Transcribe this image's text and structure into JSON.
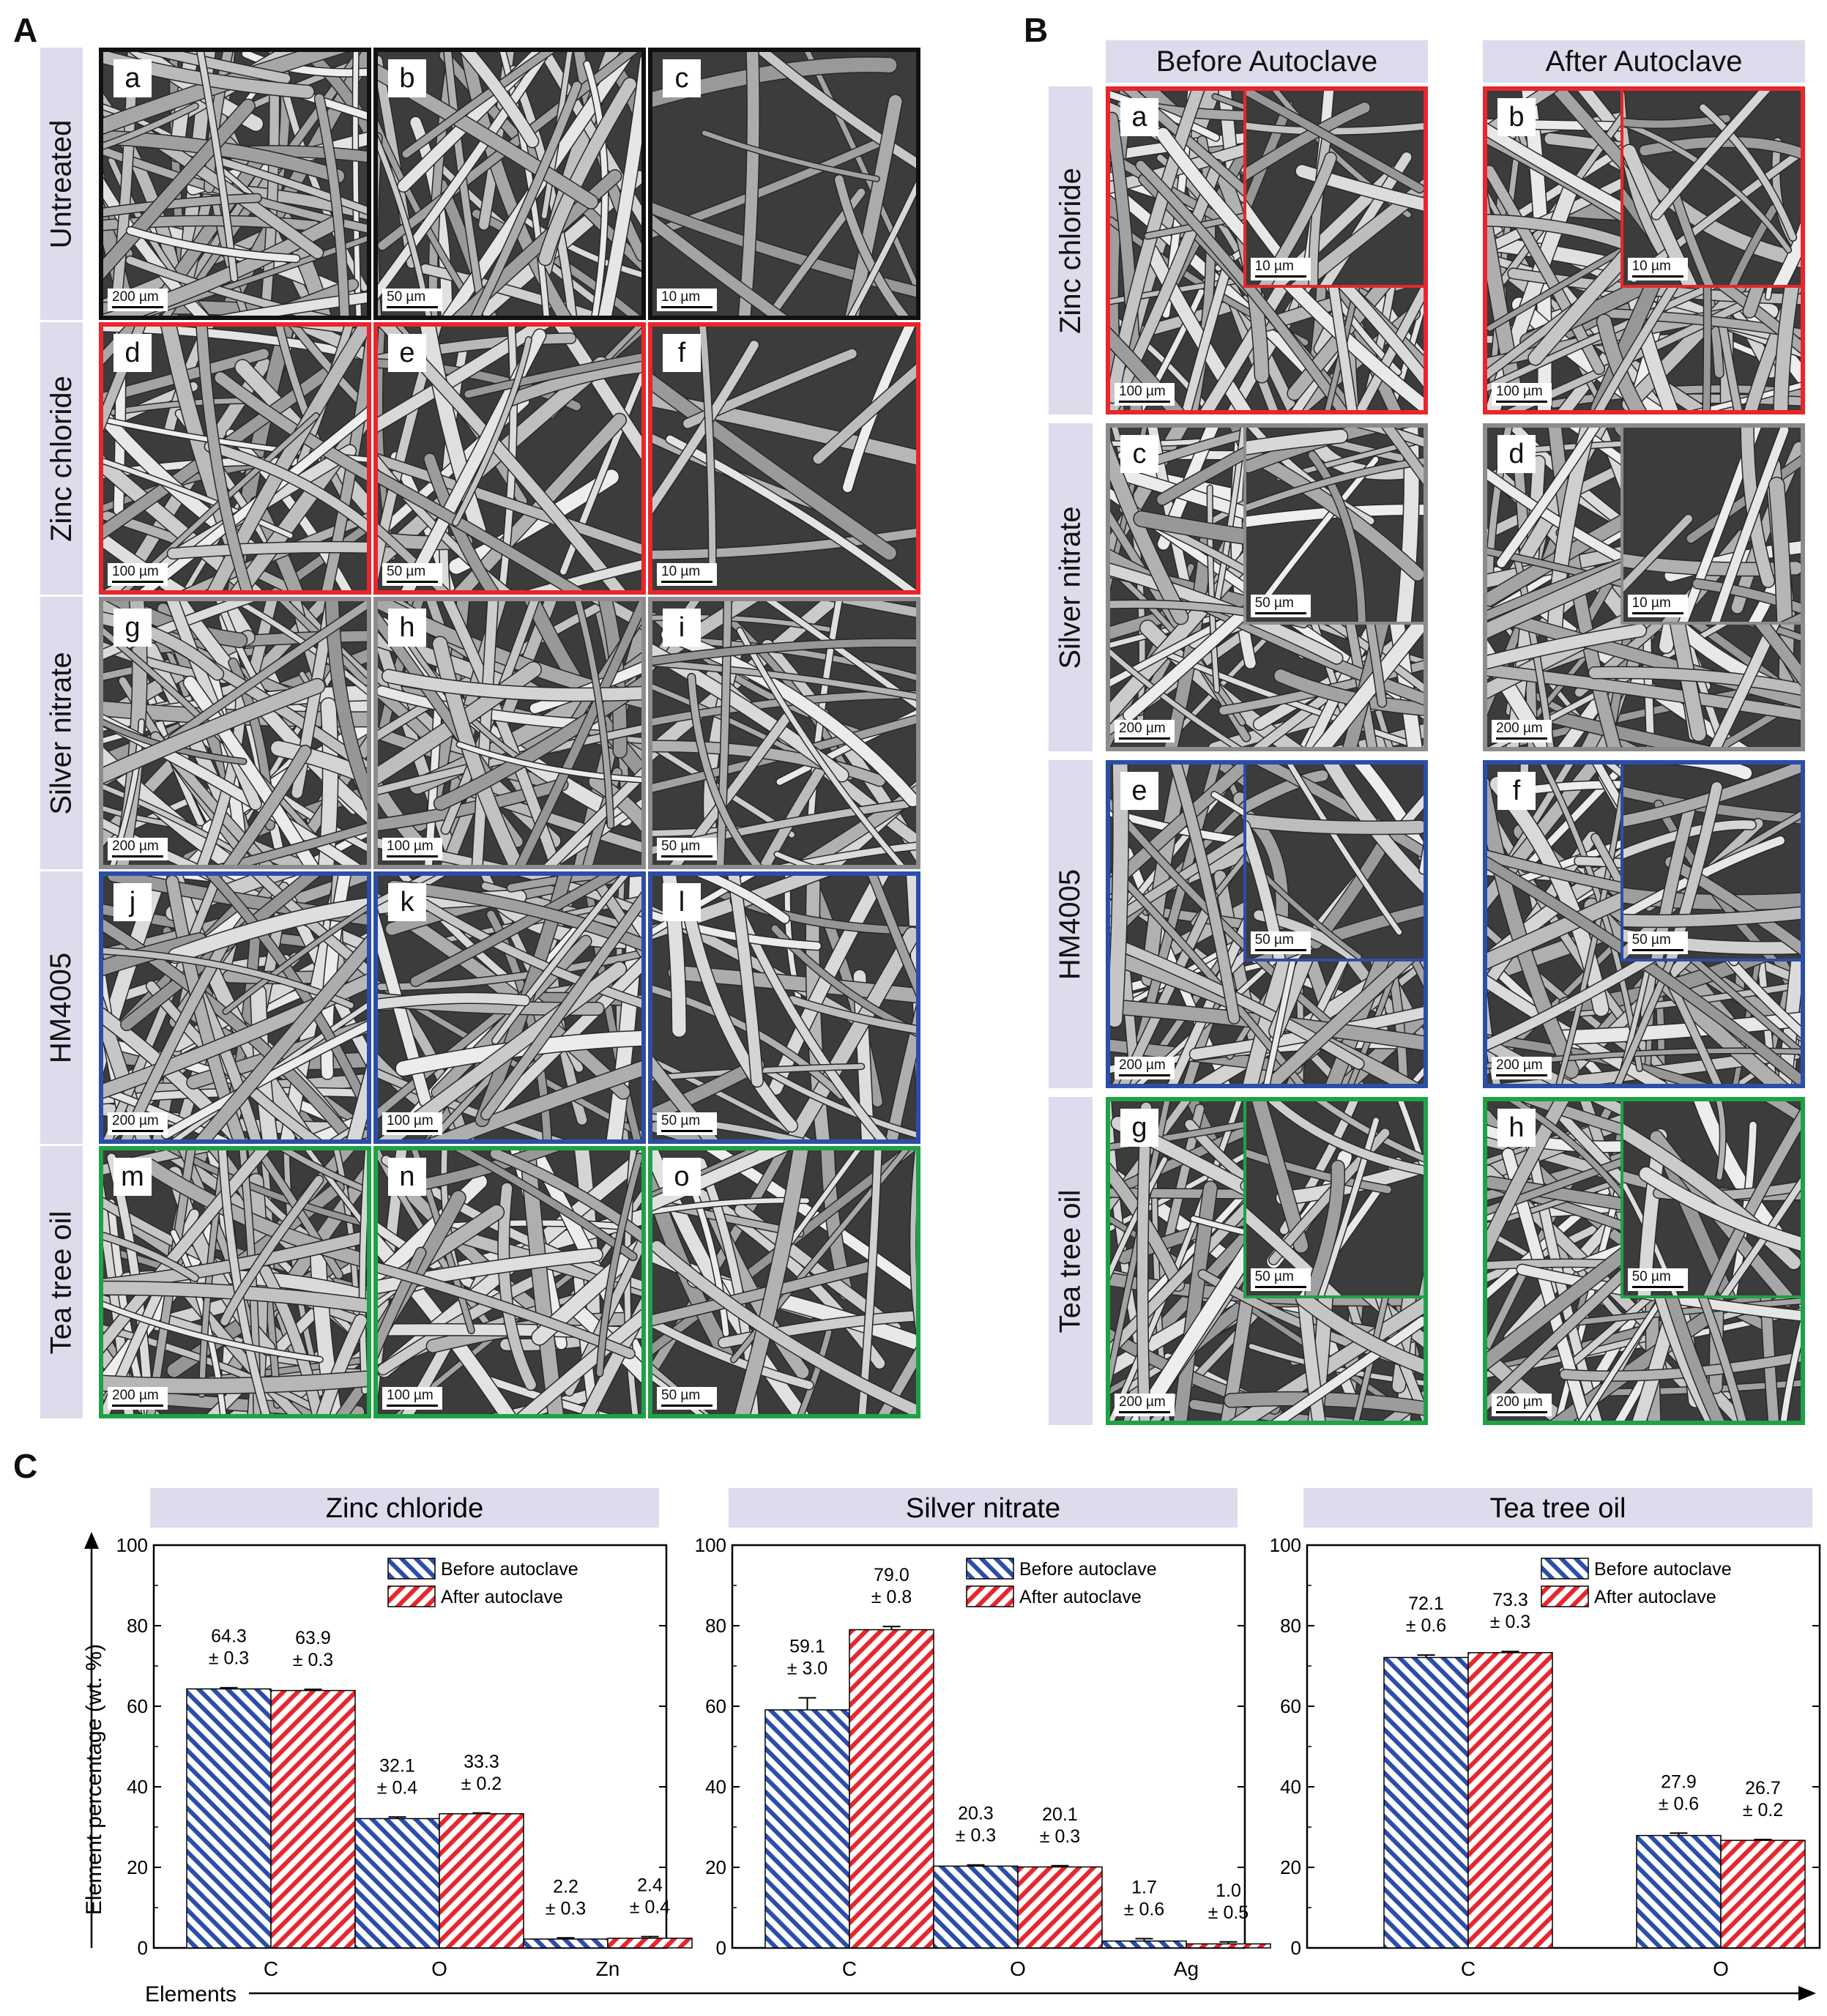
{
  "panels": {
    "A": "A",
    "B": "B",
    "C": "C"
  },
  "colors": {
    "untreated": "#111111",
    "zinc": "#e8262c",
    "silver": "#8c8c8c",
    "hm": "#2b4ea8",
    "tea": "#1fa245",
    "label_bg": "#dcdcec"
  },
  "panelA": {
    "rows": [
      "Untreated",
      "Zinc chloride",
      "Silver nitrate",
      "HM4005",
      "Tea tree oil"
    ],
    "images": [
      {
        "letter": "a",
        "scale": "200 µm"
      },
      {
        "letter": "b",
        "scale": "50 µm"
      },
      {
        "letter": "c",
        "scale": "10 µm"
      },
      {
        "letter": "d",
        "scale": "100 µm"
      },
      {
        "letter": "e",
        "scale": "50 µm"
      },
      {
        "letter": "f",
        "scale": "10 µm"
      },
      {
        "letter": "g",
        "scale": "200 µm"
      },
      {
        "letter": "h",
        "scale": "100 µm"
      },
      {
        "letter": "i",
        "scale": "50 µm"
      },
      {
        "letter": "j",
        "scale": "200 µm"
      },
      {
        "letter": "k",
        "scale": "100 µm"
      },
      {
        "letter": "l",
        "scale": "50 µm"
      },
      {
        "letter": "m",
        "scale": "200 µm"
      },
      {
        "letter": "n",
        "scale": "100 µm"
      },
      {
        "letter": "o",
        "scale": "50 µm"
      }
    ]
  },
  "panelB": {
    "columns": [
      "Before Autoclave",
      "After Autoclave"
    ],
    "rows": [
      "Zinc chloride",
      "Silver nitrate",
      "HM4005",
      "Tea tree oil"
    ],
    "images": [
      {
        "letter": "a",
        "scale": "100 µm",
        "inset_scale": "10 µm"
      },
      {
        "letter": "b",
        "scale": "100 µm",
        "inset_scale": "10 µm"
      },
      {
        "letter": "c",
        "scale": "200 µm",
        "inset_scale": "50 µm"
      },
      {
        "letter": "d",
        "scale": "200 µm",
        "inset_scale": "10 µm"
      },
      {
        "letter": "e",
        "scale": "200 µm",
        "inset_scale": "50 µm"
      },
      {
        "letter": "f",
        "scale": "200 µm",
        "inset_scale": "50 µm"
      },
      {
        "letter": "g",
        "scale": "200 µm",
        "inset_scale": "50 µm"
      },
      {
        "letter": "h",
        "scale": "200 µm",
        "inset_scale": "50 µm"
      }
    ]
  },
  "panelC": {
    "ylabel": "Element percentage (wt. %)",
    "xlabel": "Elements"
  },
  "chart_data": [
    {
      "type": "bar",
      "title": "Zinc chloride",
      "categories": [
        "C",
        "O",
        "Zn"
      ],
      "ylim": [
        0,
        100
      ],
      "yticks": [
        0,
        20,
        40,
        60,
        80,
        100
      ],
      "legend_position": "top-right",
      "series": [
        {
          "name": "Before autoclave",
          "values": [
            64.3,
            32.1,
            2.2
          ],
          "errors": [
            0.3,
            0.4,
            0.3
          ],
          "color": "#2b4ea8",
          "labels": [
            [
              "64.3",
              "± 0.3"
            ],
            [
              "32.1",
              "± 0.4"
            ],
            [
              "2.2",
              "± 0.3"
            ]
          ]
        },
        {
          "name": "After autoclave",
          "values": [
            63.9,
            33.3,
            2.4
          ],
          "errors": [
            0.3,
            0.2,
            0.4
          ],
          "color": "#e8262c",
          "labels": [
            [
              "63.9",
              "± 0.3"
            ],
            [
              "33.3",
              "± 0.2"
            ],
            [
              "2.4",
              "± 0.4"
            ]
          ]
        }
      ]
    },
    {
      "type": "bar",
      "title": "Silver nitrate",
      "categories": [
        "C",
        "O",
        "Ag"
      ],
      "ylim": [
        0,
        100
      ],
      "yticks": [
        0,
        20,
        40,
        60,
        80,
        100
      ],
      "legend_position": "top-right",
      "series": [
        {
          "name": "Before autoclave",
          "values": [
            59.1,
            20.3,
            1.7
          ],
          "errors": [
            3.0,
            0.3,
            0.6
          ],
          "color": "#2b4ea8",
          "labels": [
            [
              "59.1",
              "± 3.0"
            ],
            [
              "20.3",
              "± 0.3"
            ],
            [
              "1.7",
              "± 0.6"
            ]
          ]
        },
        {
          "name": "After autoclave",
          "values": [
            79.0,
            20.1,
            1.0
          ],
          "errors": [
            0.8,
            0.3,
            0.5
          ],
          "color": "#e8262c",
          "labels": [
            [
              "79.0",
              "± 0.8"
            ],
            [
              "20.1",
              "± 0.3"
            ],
            [
              "1.0",
              "± 0.5"
            ]
          ]
        }
      ]
    },
    {
      "type": "bar",
      "title": "Tea tree oil",
      "categories": [
        "C",
        "O"
      ],
      "ylim": [
        0,
        100
      ],
      "yticks": [
        0,
        20,
        40,
        60,
        80,
        100
      ],
      "legend_position": "top-right",
      "series": [
        {
          "name": "Before autoclave",
          "values": [
            72.1,
            27.9
          ],
          "errors": [
            0.6,
            0.6
          ],
          "color": "#2b4ea8",
          "labels": [
            [
              "72.1",
              "± 0.6"
            ],
            [
              "27.9",
              "± 0.6"
            ]
          ]
        },
        {
          "name": "After autoclave",
          "values": [
            73.3,
            26.7
          ],
          "errors": [
            0.3,
            0.2
          ],
          "color": "#e8262c",
          "labels": [
            [
              "73.3",
              "± 0.3"
            ],
            [
              "26.7",
              "± 0.2"
            ]
          ]
        }
      ]
    }
  ]
}
